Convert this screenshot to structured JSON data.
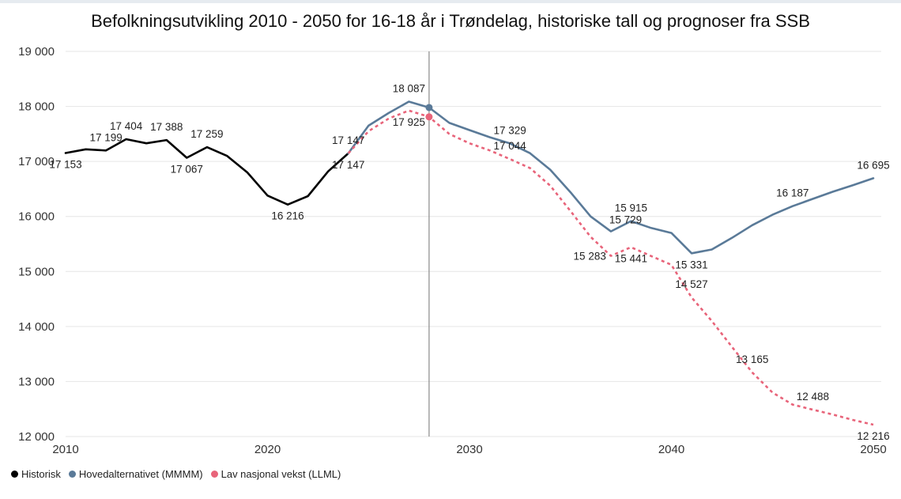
{
  "chart_data": {
    "type": "line",
    "title": "Befolkningsutvikling 2010 - 2050 for 16-18 år i Trøndelag, historiske tall og prognoser fra SSB",
    "xlabel": "",
    "ylabel": "",
    "xlim": [
      2010,
      2050
    ],
    "ylim": [
      12000,
      19000
    ],
    "x_ticks": [
      2010,
      2020,
      2030,
      2040,
      2050
    ],
    "y_ticks": [
      12000,
      13000,
      14000,
      15000,
      16000,
      17000,
      18000,
      19000
    ],
    "y_tick_labels": [
      "12 000",
      "13 000",
      "14 000",
      "15 000",
      "16 000",
      "17 000",
      "18 000",
      "19 000"
    ],
    "grid": "horizontal",
    "reference_line_x": 2028,
    "legend_position": "bottom-left",
    "series": [
      {
        "name": "Historisk",
        "color": "#000000",
        "style": "solid",
        "points": [
          [
            2010,
            17153
          ],
          [
            2011,
            17220
          ],
          [
            2012,
            17199
          ],
          [
            2013,
            17404
          ],
          [
            2014,
            17330
          ],
          [
            2015,
            17388
          ],
          [
            2016,
            17067
          ],
          [
            2017,
            17259
          ],
          [
            2018,
            17100
          ],
          [
            2019,
            16800
          ],
          [
            2020,
            16380
          ],
          [
            2021,
            16216
          ],
          [
            2022,
            16370
          ],
          [
            2023,
            16820
          ],
          [
            2024,
            17147
          ]
        ]
      },
      {
        "name": "Hovedalternativet (MMMM)",
        "color": "#5a7a98",
        "style": "solid",
        "marker_x": 2028,
        "points": [
          [
            2024,
            17147
          ],
          [
            2025,
            17650
          ],
          [
            2026,
            17880
          ],
          [
            2027,
            18087
          ],
          [
            2028,
            17980
          ],
          [
            2029,
            17700
          ],
          [
            2030,
            17570
          ],
          [
            2031,
            17440
          ],
          [
            2032,
            17329
          ],
          [
            2033,
            17150
          ],
          [
            2034,
            16850
          ],
          [
            2035,
            16440
          ],
          [
            2036,
            16000
          ],
          [
            2037,
            15729
          ],
          [
            2038,
            15915
          ],
          [
            2039,
            15790
          ],
          [
            2040,
            15700
          ],
          [
            2041,
            15331
          ],
          [
            2042,
            15400
          ],
          [
            2043,
            15610
          ],
          [
            2044,
            15840
          ],
          [
            2045,
            16030
          ],
          [
            2046,
            16187
          ],
          [
            2047,
            16320
          ],
          [
            2048,
            16450
          ],
          [
            2049,
            16570
          ],
          [
            2050,
            16695
          ]
        ]
      },
      {
        "name": "Lav nasjonal vekst (LLML)",
        "color": "#e8647a",
        "style": "dashed",
        "marker_x": 2028,
        "points": [
          [
            2024,
            17147
          ],
          [
            2025,
            17550
          ],
          [
            2026,
            17780
          ],
          [
            2027,
            17925
          ],
          [
            2028,
            17810
          ],
          [
            2029,
            17500
          ],
          [
            2030,
            17330
          ],
          [
            2031,
            17200
          ],
          [
            2032,
            17044
          ],
          [
            2033,
            16880
          ],
          [
            2034,
            16560
          ],
          [
            2035,
            16100
          ],
          [
            2036,
            15630
          ],
          [
            2037,
            15283
          ],
          [
            2038,
            15441
          ],
          [
            2039,
            15280
          ],
          [
            2040,
            15120
          ],
          [
            2041,
            14527
          ],
          [
            2042,
            14100
          ],
          [
            2043,
            13630
          ],
          [
            2044,
            13165
          ],
          [
            2045,
            12800
          ],
          [
            2046,
            12580
          ],
          [
            2047,
            12488
          ],
          [
            2048,
            12400
          ],
          [
            2049,
            12300
          ],
          [
            2050,
            12216
          ]
        ]
      }
    ],
    "data_labels": [
      {
        "x": 2010,
        "y": 17153,
        "text": "17 153",
        "pos": "below"
      },
      {
        "x": 2012,
        "y": 17199,
        "text": "17 199",
        "pos": "above"
      },
      {
        "x": 2013,
        "y": 17404,
        "text": "17 404",
        "pos": "above"
      },
      {
        "x": 2015,
        "y": 17388,
        "text": "17 388",
        "pos": "above"
      },
      {
        "x": 2016,
        "y": 17067,
        "text": "17 067",
        "pos": "below"
      },
      {
        "x": 2017,
        "y": 17259,
        "text": "17 259",
        "pos": "above"
      },
      {
        "x": 2021,
        "y": 16216,
        "text": "16 216",
        "pos": "below"
      },
      {
        "x": 2024,
        "y": 17147,
        "text": "17 147",
        "pos": "above"
      },
      {
        "x": 2024,
        "y": 17147,
        "text": "17 147",
        "pos": "below"
      },
      {
        "x": 2027,
        "y": 18087,
        "text": "18 087",
        "pos": "above"
      },
      {
        "x": 2027,
        "y": 17925,
        "text": "17 925",
        "pos": "below"
      },
      {
        "x": 2032,
        "y": 17329,
        "text": "17 329",
        "pos": "above"
      },
      {
        "x": 2032,
        "y": 17044,
        "text": "17 044",
        "pos": "above"
      },
      {
        "x": 2038,
        "y": 15915,
        "text": "15 915",
        "pos": "above"
      },
      {
        "x": 2037,
        "y": 15729,
        "text": "15 729",
        "pos": "above-right"
      },
      {
        "x": 2037,
        "y": 15283,
        "text": "15 283",
        "pos": "left"
      },
      {
        "x": 2038,
        "y": 15441,
        "text": "15 441",
        "pos": "below"
      },
      {
        "x": 2041,
        "y": 15331,
        "text": "15 331",
        "pos": "below"
      },
      {
        "x": 2041,
        "y": 14527,
        "text": "14 527",
        "pos": "above"
      },
      {
        "x": 2044,
        "y": 13165,
        "text": "13 165",
        "pos": "above"
      },
      {
        "x": 2047,
        "y": 12488,
        "text": "12 488",
        "pos": "above"
      },
      {
        "x": 2050,
        "y": 12216,
        "text": "12 216",
        "pos": "below"
      },
      {
        "x": 2046,
        "y": 16187,
        "text": "16 187",
        "pos": "above"
      },
      {
        "x": 2050,
        "y": 16695,
        "text": "16 695",
        "pos": "above"
      }
    ]
  }
}
